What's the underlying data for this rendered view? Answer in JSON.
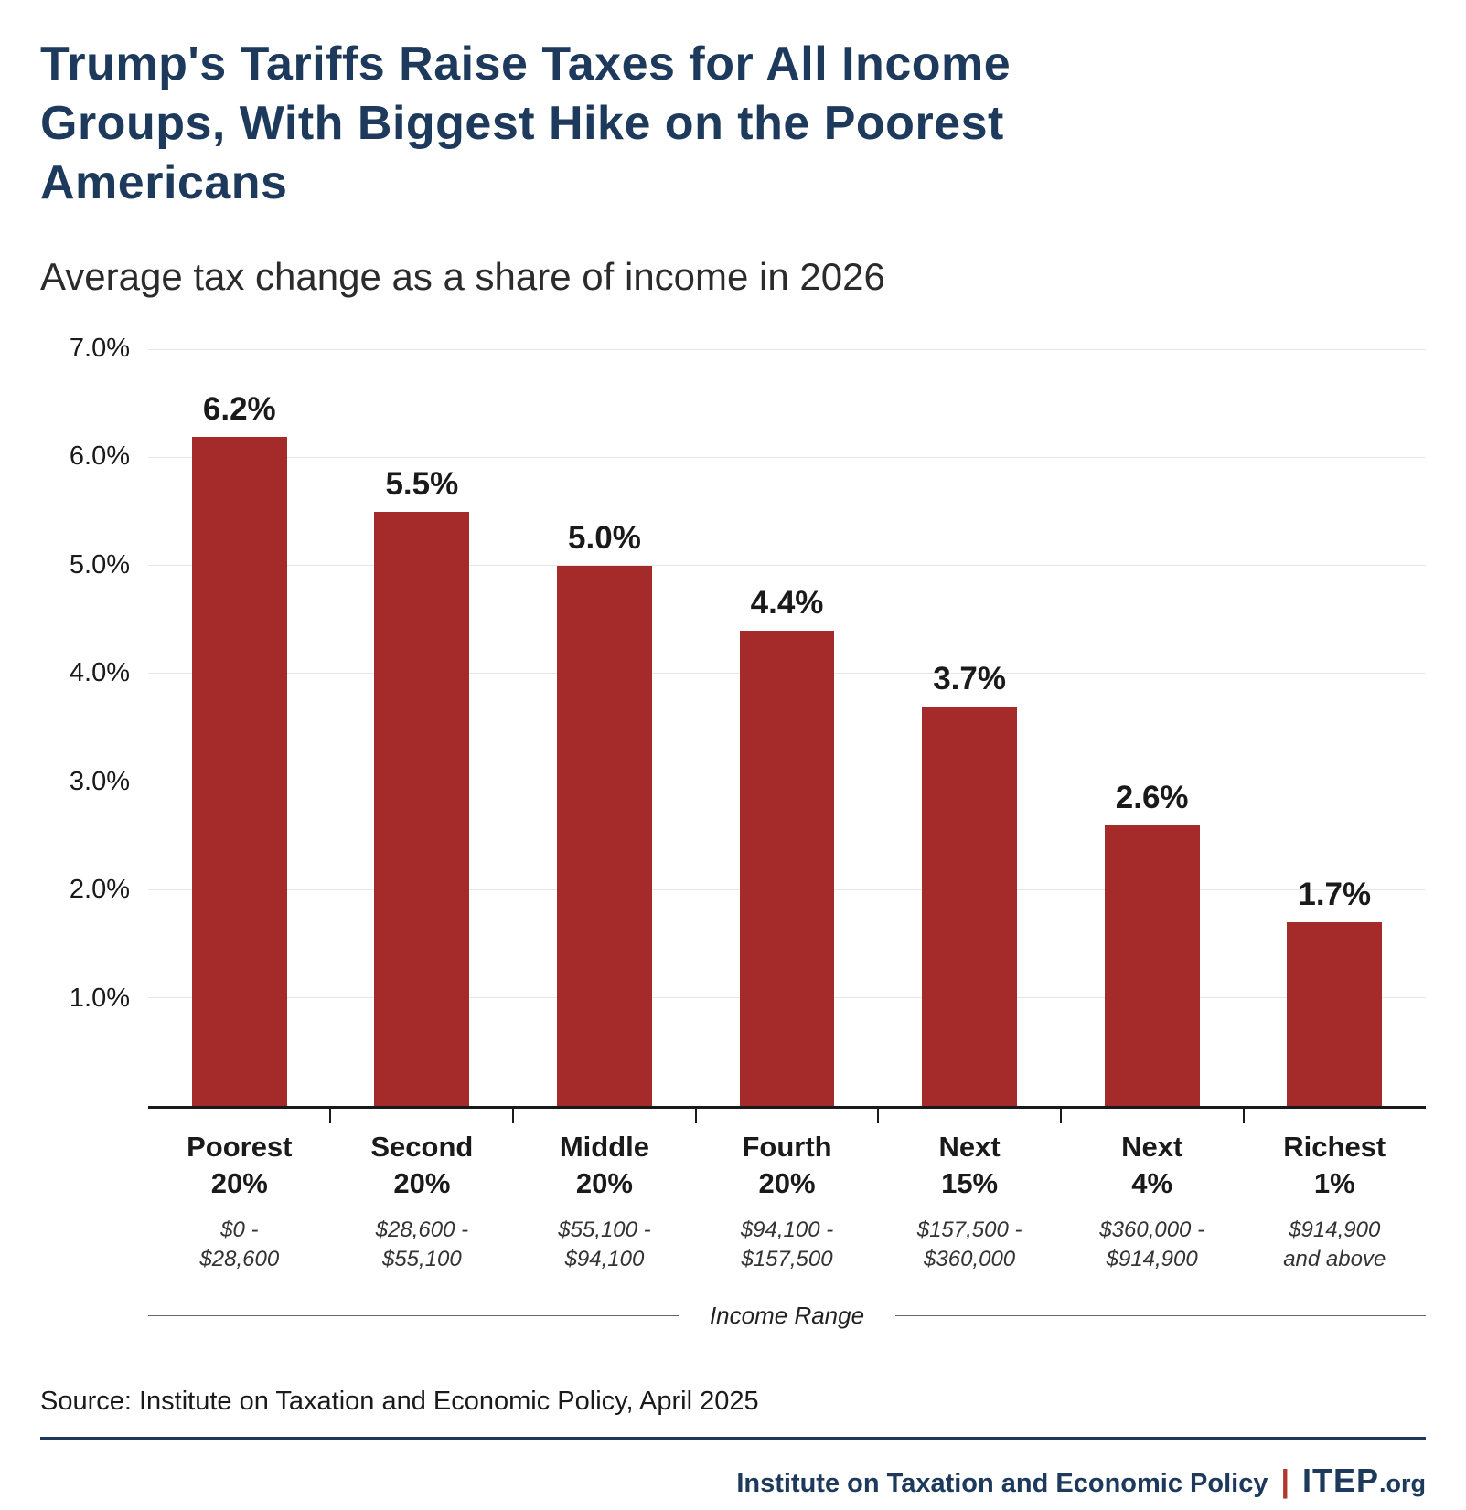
{
  "header": {
    "title": "Trump's Tariffs Raise Taxes for All Income Groups, With Biggest Hike on the Poorest Americans"
  },
  "chart_data": {
    "type": "bar",
    "title": "Average tax change as a share of income in 2026",
    "xlabel": "Income Range",
    "ylabel": "",
    "ylim": [
      0,
      7
    ],
    "grid": true,
    "legend": "none",
    "bar_color": "#A52A2A",
    "yticks": [
      {
        "label": "1.0%",
        "value": 1
      },
      {
        "label": "2.0%",
        "value": 2
      },
      {
        "label": "3.0%",
        "value": 3
      },
      {
        "label": "4.0%",
        "value": 4
      },
      {
        "label": "5.0%",
        "value": 5
      },
      {
        "label": "6.0%",
        "value": 6
      },
      {
        "label": "7.0%",
        "value": 7
      }
    ],
    "categories": [
      "Poorest\n20%",
      "Second\n20%",
      "Middle\n20%",
      "Fourth\n20%",
      "Next\n15%",
      "Next\n4%",
      "Richest\n1%"
    ],
    "ranges": [
      "$0 -\n$28,600",
      "$28,600 -\n$55,100",
      "$55,100 -\n$94,100",
      "$94,100 -\n$157,500",
      "$157,500 -\n$360,000",
      "$360,000 -\n$914,900",
      "$914,900\nand above"
    ],
    "values": [
      6.2,
      5.5,
      5.0,
      4.4,
      3.7,
      2.6,
      1.7
    ],
    "value_labels": [
      "6.2%",
      "5.5%",
      "5.0%",
      "4.4%",
      "3.7%",
      "2.6%",
      "1.7%"
    ]
  },
  "footer": {
    "source": "Source: Institute on Taxation and Economic Policy, April 2025",
    "org": "Institute on Taxation and Economic Policy",
    "separator": "|",
    "logo_main": "ITEP",
    "logo_suffix": ".org"
  }
}
